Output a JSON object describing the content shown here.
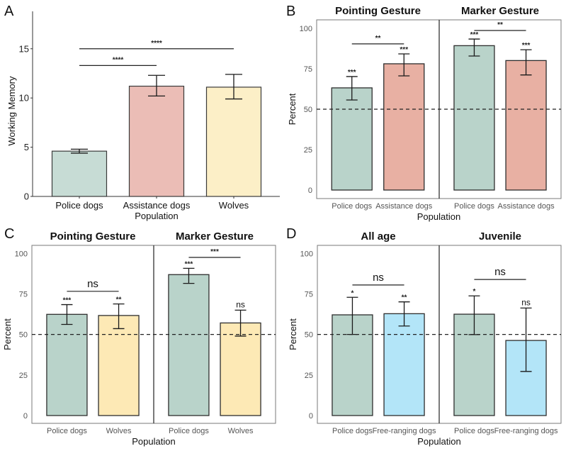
{
  "chart_data": [
    {
      "panel": "A",
      "type": "bar",
      "title": "",
      "xlabel": "Population",
      "ylabel": "Working Memory",
      "ylim": [
        0,
        18.8
      ],
      "yticks": [
        0,
        5,
        10,
        15
      ],
      "categories": [
        "Police dogs",
        "Assistance dogs",
        "Wolves"
      ],
      "values": [
        4.6,
        11.2,
        11.1
      ],
      "error_low": [
        4.4,
        10.2,
        9.9
      ],
      "error_high": [
        4.8,
        12.3,
        12.4
      ],
      "colors": [
        "#c7dcd5",
        "#ebbdb6",
        "#fcefc7"
      ],
      "brackets": [
        {
          "from": 0,
          "to": 1,
          "y": 13.3,
          "label": "****"
        },
        {
          "from": 0,
          "to": 2,
          "y": 15.0,
          "label": "****"
        }
      ],
      "bar_labels": [
        "",
        "",
        ""
      ],
      "reference_line": null
    },
    {
      "panel": "B",
      "type": "bar",
      "xlabel": "Population",
      "ylabel": "Percent",
      "ylim": [
        0,
        100
      ],
      "yticks": [
        0,
        25,
        50,
        75,
        100
      ],
      "reference_line": 50,
      "facets": [
        {
          "title": "Pointing Gesture",
          "categories": [
            "Police dogs",
            "Assistance dogs"
          ],
          "values": [
            63.2,
            78.1
          ],
          "error_low": [
            55.7,
            70.6
          ],
          "error_high": [
            70.2,
            84.2
          ],
          "colors": [
            "#b9d3ca",
            "#e8b0a3"
          ],
          "bar_labels": [
            "***",
            "***"
          ],
          "bracket": {
            "y": 90.4,
            "label": "**"
          }
        },
        {
          "title": "Marker Gesture",
          "categories": [
            "Police dogs",
            "Assistance dogs"
          ],
          "values": [
            89.3,
            80.1
          ],
          "error_low": [
            82.9,
            71.2
          ],
          "error_high": [
            93.4,
            86.8
          ],
          "colors": [
            "#b9d3ca",
            "#e8b0a3"
          ],
          "bar_labels": [
            "***",
            "***"
          ],
          "bracket": {
            "y": 98.7,
            "label": "**"
          }
        }
      ]
    },
    {
      "panel": "C",
      "type": "bar",
      "xlabel": "Population",
      "ylabel": "Percent",
      "ylim": [
        0,
        100
      ],
      "yticks": [
        0,
        25,
        50,
        75,
        100
      ],
      "reference_line": 50,
      "facets": [
        {
          "title": "Pointing Gesture",
          "categories": [
            "Police dogs",
            "Wolves"
          ],
          "values": [
            62.4,
            61.7
          ],
          "error_low": [
            56.2,
            53.6
          ],
          "error_high": [
            68.4,
            68.8
          ],
          "colors": [
            "#b9d3ca",
            "#fde9b5"
          ],
          "bar_labels": [
            "***",
            "**"
          ],
          "bracket": {
            "y": 76.6,
            "label": "ns"
          }
        },
        {
          "title": "Marker Gesture",
          "categories": [
            "Police dogs",
            "Wolves"
          ],
          "values": [
            86.9,
            57.1
          ],
          "error_low": [
            81.5,
            49.0
          ],
          "error_high": [
            90.8,
            65.0
          ],
          "colors": [
            "#b9d3ca",
            "#fde9b5"
          ],
          "bar_labels": [
            "***",
            "ns"
          ],
          "bracket": {
            "y": 97.5,
            "label": "***"
          }
        }
      ]
    },
    {
      "panel": "D",
      "type": "bar",
      "xlabel": "Population",
      "ylabel": "Percent",
      "ylim": [
        0,
        100
      ],
      "yticks": [
        0,
        25,
        50,
        75,
        100
      ],
      "reference_line": 50,
      "facets": [
        {
          "title": "All age",
          "categories": [
            "Police dogs",
            "Free-ranging dogs"
          ],
          "values": [
            62.1,
            62.8
          ],
          "error_low": [
            50.0,
            55.2
          ],
          "error_high": [
            72.9,
            70.1
          ],
          "colors": [
            "#b9d3ca",
            "#b3e5f8"
          ],
          "bar_labels": [
            "*",
            "**"
          ],
          "bracket": {
            "y": 80.5,
            "label": "ns"
          }
        },
        {
          "title": "Juvenile",
          "categories": [
            "Police dogs",
            "Free-ranging dogs"
          ],
          "values": [
            62.5,
            46.3
          ],
          "error_low": [
            49.9,
            27.2
          ],
          "error_high": [
            73.8,
            66.3
          ],
          "colors": [
            "#b9d3ca",
            "#b3e5f8"
          ],
          "bar_labels": [
            "*",
            "ns"
          ],
          "bracket": {
            "y": 83.9,
            "label": "ns"
          }
        }
      ]
    }
  ]
}
